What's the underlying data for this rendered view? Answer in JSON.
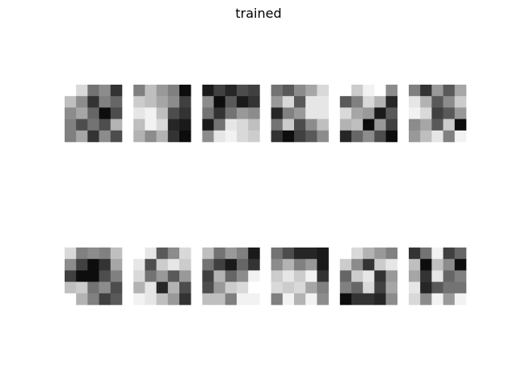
{
  "chart_data": {
    "type": "heatmap",
    "title": "trained",
    "colormap": "gray",
    "layout": {
      "rows": 2,
      "cols": 6
    },
    "value_range": [
      0,
      1
    ],
    "filters": [
      [
        [
          1,
          0.85,
          0.45,
          0.55,
          0.2
        ],
        [
          0.75,
          0.55,
          0.2,
          0.5,
          0.4
        ],
        [
          0.55,
          0.65,
          0.4,
          0.05,
          0.3
        ],
        [
          0.5,
          0.3,
          0.45,
          0.3,
          0.7
        ],
        [
          0.5,
          0.65,
          0.2,
          0.55,
          0.3
        ]
      ],
      [
        [
          0.5,
          0.75,
          0.6,
          0.5,
          0.05
        ],
        [
          0.8,
          0.75,
          0.65,
          0.55,
          0.25
        ],
        [
          0.9,
          0.95,
          0.75,
          0.3,
          0.2
        ],
        [
          0.75,
          0.95,
          0.85,
          0.15,
          0.1
        ],
        [
          0.7,
          0.55,
          0.7,
          0.2,
          0.05
        ]
      ],
      [
        [
          0.1,
          0.25,
          0.15,
          0.3,
          0.25
        ],
        [
          0.55,
          0.05,
          0.35,
          0.1,
          0.2
        ],
        [
          0.45,
          0.2,
          0.45,
          0.6,
          0.55
        ],
        [
          0.1,
          0.45,
          0.9,
          0.85,
          0.75
        ],
        [
          0.55,
          0.9,
          0.95,
          0.85,
          0.8
        ]
      ],
      [
        [
          0.45,
          0.35,
          0.55,
          0.65,
          0.85
        ],
        [
          0.6,
          0.85,
          0.35,
          0.9,
          0.9
        ],
        [
          0.15,
          0.5,
          0.6,
          0.9,
          0.9
        ],
        [
          0.45,
          0.8,
          0.3,
          0.55,
          0.75
        ],
        [
          0.2,
          0.05,
          0.25,
          0.35,
          0.55
        ]
      ],
      [
        [
          1,
          0.8,
          0.95,
          1,
          0.55
        ],
        [
          0.35,
          0.5,
          0.85,
          0.7,
          0.15
        ],
        [
          0.85,
          0.65,
          0.6,
          0.1,
          0.35
        ],
        [
          0.7,
          0.75,
          0.05,
          0.6,
          0.25
        ],
        [
          0.15,
          0.4,
          0.55,
          0.3,
          0.05
        ]
      ],
      [
        [
          0.5,
          0.2,
          0.6,
          0.35,
          0.65
        ],
        [
          0.9,
          0.7,
          0.35,
          0.55,
          0.8
        ],
        [
          0.95,
          0.85,
          0.25,
          0.35,
          0.6
        ],
        [
          0.55,
          0.65,
          0.35,
          0.8,
          0.05
        ],
        [
          0.6,
          0.75,
          0.9,
          0.5,
          0.95
        ]
      ],
      [
        [
          0.85,
          0.5,
          0.55,
          0.5,
          0.75
        ],
        [
          0.55,
          0.25,
          0.05,
          0.2,
          0.65
        ],
        [
          0.25,
          0.05,
          0.05,
          0.3,
          0.5
        ],
        [
          0.75,
          0.8,
          0.45,
          0.55,
          0.3
        ],
        [
          1,
          0.7,
          0.5,
          0.25,
          0.35
        ]
      ],
      [
        [
          1,
          0.9,
          0.35,
          0.55,
          0.85
        ],
        [
          0.9,
          0.3,
          0.8,
          0.9,
          0.8
        ],
        [
          0.85,
          0.45,
          0.6,
          0.35,
          0.6
        ],
        [
          0.7,
          0.9,
          0.15,
          0.7,
          0.3
        ],
        [
          0.95,
          0.9,
          0.75,
          0.6,
          0.2
        ]
      ],
      [
        [
          0.75,
          0.45,
          0.6,
          0.5,
          0.1
        ],
        [
          0.45,
          0.25,
          0.1,
          0.4,
          0.2
        ],
        [
          0.25,
          0.7,
          0.4,
          0.55,
          0.95
        ],
        [
          0.3,
          0.6,
          0.8,
          0.85,
          1
        ],
        [
          0.75,
          0.75,
          0.5,
          0.95,
          0.95
        ]
      ],
      [
        [
          0.45,
          0.3,
          0.15,
          0.15,
          0.1
        ],
        [
          0.55,
          0.7,
          0.5,
          0.6,
          0.1
        ],
        [
          0.8,
          0.9,
          0.8,
          0.95,
          0.2
        ],
        [
          0.85,
          0.8,
          0.85,
          0.65,
          0.5
        ],
        [
          0.5,
          0.95,
          0.7,
          0.95,
          0.55
        ]
      ],
      [
        [
          1,
          0.85,
          0.7,
          0.6,
          0.5
        ],
        [
          0.8,
          0.55,
          0.2,
          0.8,
          0.9
        ],
        [
          0.4,
          0.8,
          0.9,
          0.2,
          0.6
        ],
        [
          0.5,
          0.4,
          0.85,
          0.25,
          0.65
        ],
        [
          0.05,
          0.2,
          0.2,
          0.15,
          0.55
        ]
      ],
      [
        [
          0.2,
          0.45,
          0.95,
          0.25,
          0.4
        ],
        [
          0.75,
          0.05,
          0.75,
          0.55,
          0.05
        ],
        [
          0.65,
          0.2,
          0.9,
          0.4,
          0.5
        ],
        [
          0.9,
          0.15,
          0.35,
          0.45,
          0.45
        ],
        [
          0.85,
          0.55,
          0.95,
          0.6,
          0.95
        ]
      ]
    ]
  }
}
